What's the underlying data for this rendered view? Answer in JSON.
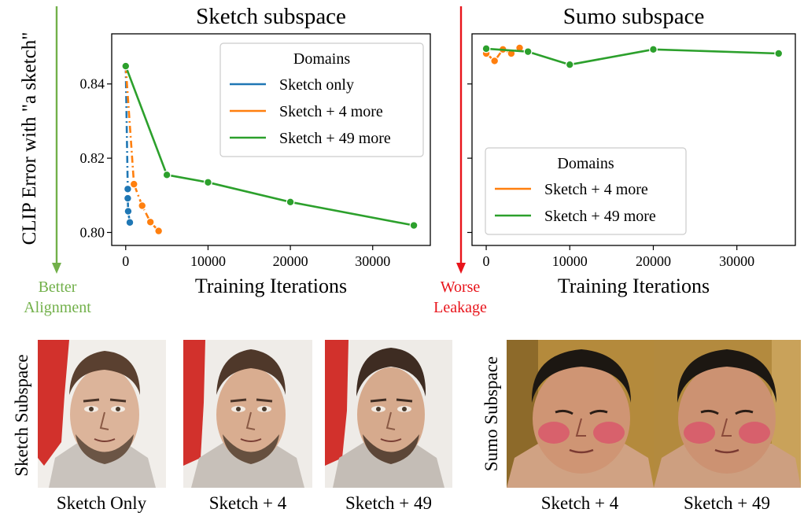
{
  "ylabel": "CLIP Error with \"a sketch\"",
  "better_alignment_line1": "Better",
  "better_alignment_line2": "Alignment",
  "worse_leakage_line1": "Worse",
  "worse_leakage_line2": "Leakage",
  "colors": {
    "better_arrow": "#72b04a",
    "worse_arrow": "#e8141b",
    "blue": "#1f77b4",
    "orange": "#ff7f0e",
    "green": "#2ca02c"
  },
  "chart_data": [
    {
      "type": "line",
      "title": "Sketch subspace",
      "xlabel": "Training Iterations",
      "ylabel": "CLIP Error with \"a sketch\"",
      "xlim": [
        -1700,
        37000
      ],
      "ylim": [
        0.7965,
        0.8535
      ],
      "xticks": [
        0,
        10000,
        20000,
        30000
      ],
      "xtick_labels": [
        "0",
        "10000",
        "20000",
        "30000"
      ],
      "yticks": [
        0.8,
        0.82,
        0.84
      ],
      "ytick_labels": [
        "0.80",
        "0.82",
        "0.84"
      ],
      "legend_title": "Domains",
      "legend_position": "upper right",
      "grid": false,
      "series": [
        {
          "name": "Sketch only",
          "color": "#1f77b4",
          "x": [
            0,
            250,
            250,
            300,
            500
          ],
          "y": [
            0.8448,
            0.8117,
            0.8092,
            0.8057,
            0.8027
          ]
        },
        {
          "name": "Sketch + 4 more",
          "color": "#ff7f0e",
          "x": [
            0,
            1000,
            2000,
            3000,
            4000
          ],
          "y": [
            0.8448,
            0.813,
            0.8072,
            0.8028,
            0.8004
          ]
        },
        {
          "name": "Sketch + 49 more",
          "color": "#2ca02c",
          "x": [
            0,
            5000,
            10000,
            20000,
            35000
          ],
          "y": [
            0.8448,
            0.8155,
            0.8135,
            0.8082,
            0.8019
          ]
        }
      ]
    },
    {
      "type": "line",
      "title": "Sumo subspace",
      "xlabel": "Training Iterations",
      "xlim": [
        -1700,
        37000
      ],
      "ylim": [
        0.7965,
        0.8535
      ],
      "xticks": [
        0,
        10000,
        20000,
        30000
      ],
      "xtick_labels": [
        "0",
        "10000",
        "20000",
        "30000"
      ],
      "yticks": [
        0.8,
        0.82,
        0.84
      ],
      "ytick_labels": [
        "",
        "",
        ""
      ],
      "legend_title": "Domains",
      "legend_position": "lower left",
      "grid": false,
      "series": [
        {
          "name": "Sketch + 4 more",
          "color": "#ff7f0e",
          "x": [
            0,
            1000,
            2000,
            3000,
            4000
          ],
          "y": [
            0.8482,
            0.8462,
            0.8493,
            0.8482,
            0.8497
          ]
        },
        {
          "name": "Sketch + 49 more",
          "color": "#2ca02c",
          "x": [
            0,
            5000,
            10000,
            20000,
            35000
          ],
          "y": [
            0.8495,
            0.8487,
            0.8452,
            0.8493,
            0.8482
          ]
        }
      ]
    }
  ],
  "sketch_row_label": "Sketch Subspace",
  "sumo_row_label": "Sumo Subspace",
  "captions": {
    "sketch_only": "Sketch Only",
    "sketch_4": "Sketch + 4",
    "sketch_49": "Sketch + 49",
    "sumo_4": "Sketch + 4",
    "sumo_49": "Sketch + 49"
  }
}
